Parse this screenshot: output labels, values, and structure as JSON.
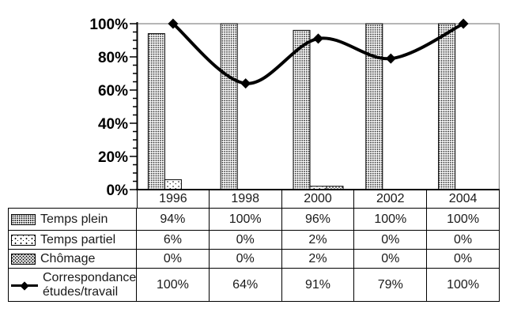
{
  "chart_data": {
    "type": "combo-bar-line",
    "categories": [
      "1996",
      "1998",
      "2000",
      "2002",
      "2004"
    ],
    "series": [
      {
        "name": "Temps plein",
        "type": "bar",
        "pattern": "dense-dots",
        "values": [
          94,
          100,
          96,
          100,
          100
        ],
        "labels": [
          "94%",
          "100%",
          "96%",
          "100%",
          "100%"
        ],
        "label_lines": [
          "Temps plein"
        ]
      },
      {
        "name": "Temps partiel",
        "type": "bar",
        "pattern": "sparse-dots",
        "values": [
          6,
          0,
          2,
          0,
          0
        ],
        "labels": [
          "6%",
          "0%",
          "2%",
          "0%",
          "0%"
        ],
        "label_lines": [
          "Temps partiel"
        ]
      },
      {
        "name": "Chômage",
        "type": "bar",
        "pattern": "medium-dots",
        "values": [
          0,
          0,
          2,
          0,
          0
        ],
        "labels": [
          "0%",
          "0%",
          "2%",
          "0%",
          "0%"
        ],
        "label_lines": [
          "Chômage"
        ]
      },
      {
        "name": "Correspondance études/travail",
        "type": "line",
        "marker": "diamond",
        "values": [
          100,
          64,
          91,
          79,
          100
        ],
        "labels": [
          "100%",
          "64%",
          "91%",
          "79%",
          "100%"
        ],
        "label_lines": [
          "Correspondance",
          "études/travail"
        ]
      }
    ],
    "y_axis": {
      "min": 0,
      "max": 100,
      "major_step": 20,
      "minor_step": 5,
      "tick_labels": [
        "0%",
        "20%",
        "40%",
        "60%",
        "80%",
        "100%"
      ]
    },
    "xlabel": "",
    "ylabel": "",
    "title": "",
    "grid": "single-gridline-at-100%",
    "legend_position": "table-left-column",
    "colors": {
      "bar_fill_base": "#ffffff",
      "bar_outline": "#000000",
      "line": "#000000",
      "axis": "#000000",
      "gridline": "#8a8a8a",
      "plot_border": "#8a8a8a",
      "text": "#1a1a1a"
    }
  }
}
